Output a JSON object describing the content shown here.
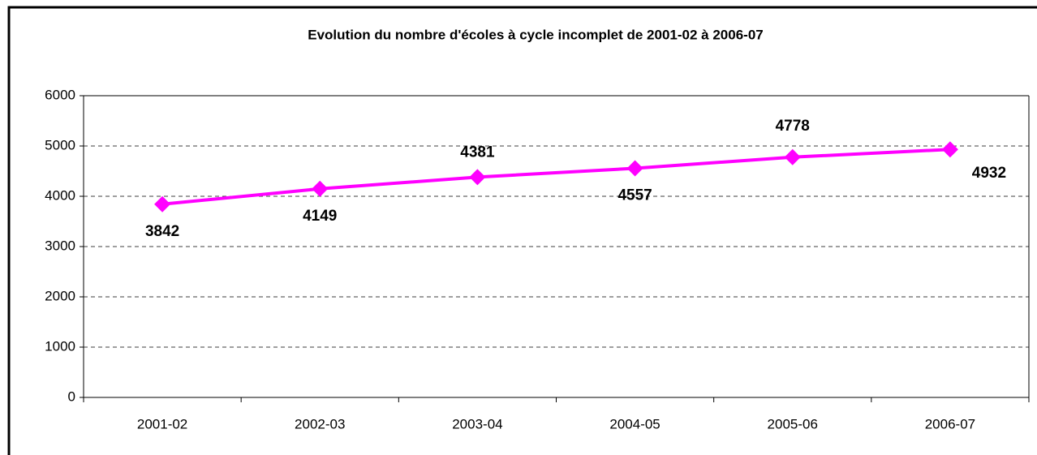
{
  "chart_data": {
    "type": "line",
    "title": "Evolution du nombre d'écoles à cycle incomplet de 2001-02 à 2006-07",
    "categories": [
      "2001-02",
      "2002-03",
      "2003-04",
      "2004-05",
      "2005-06",
      "2006-07"
    ],
    "values": [
      3842,
      4149,
      4381,
      4557,
      4778,
      4932
    ],
    "color": "#ff00ff",
    "ylim": [
      0,
      6000
    ],
    "yticks": [
      0,
      1000,
      2000,
      3000,
      4000,
      5000,
      6000
    ],
    "grid": true
  }
}
